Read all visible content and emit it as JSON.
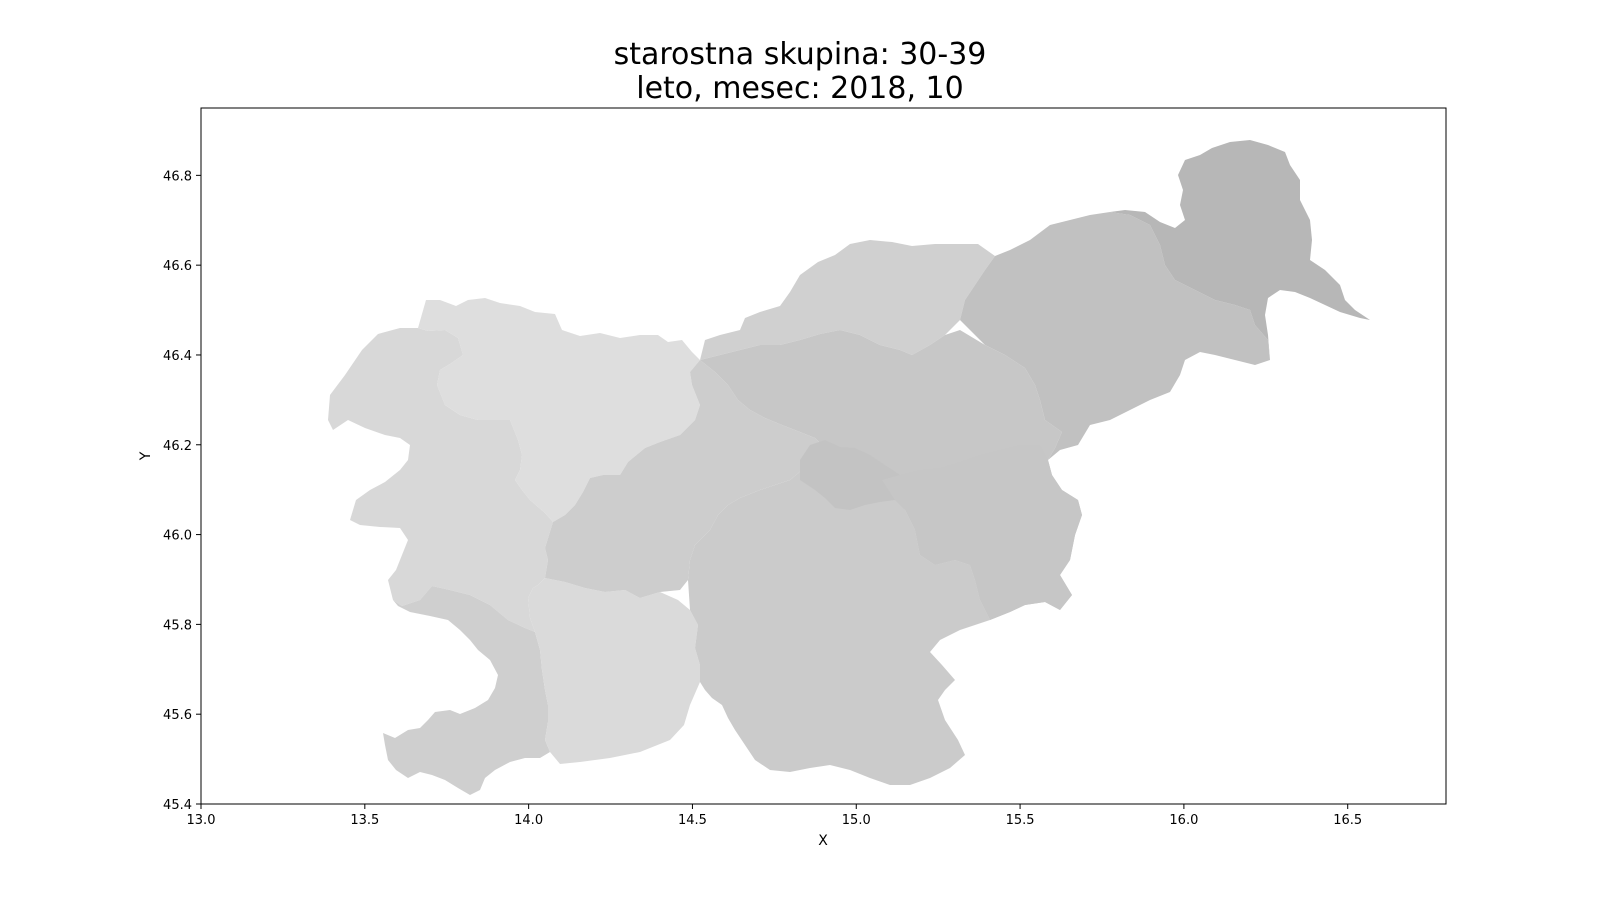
{
  "title_line1": "starostna skupina: 30-39",
  "title_line2": "leto, mesec: 2018, 10",
  "chart_data": {
    "type": "map",
    "xlabel": "X",
    "ylabel": "Y",
    "xlim": [
      13.0,
      16.8
    ],
    "ylim": [
      45.4,
      46.95
    ],
    "xticks": [
      "13.0",
      "13.5",
      "14.0",
      "14.5",
      "15.0",
      "15.5",
      "16.0",
      "16.5"
    ],
    "yticks": [
      "45.4",
      "45.6",
      "45.8",
      "46.0",
      "46.2",
      "46.4",
      "46.6",
      "46.8"
    ],
    "regions": [
      {
        "id": "goriska",
        "color": "#d8d8d8"
      },
      {
        "id": "gorenjska",
        "color": "#dedede"
      },
      {
        "id": "obalno-kraska",
        "color": "#cfcfcf"
      },
      {
        "id": "primorsko-notranjska",
        "color": "#dadada"
      },
      {
        "id": "osrednjeslovenska",
        "color": "#cdcdcd"
      },
      {
        "id": "jugovzhodna",
        "color": "#cbcbcb"
      },
      {
        "id": "koroska",
        "color": "#d0d0d0"
      },
      {
        "id": "savinjska",
        "color": "#c7c7c7"
      },
      {
        "id": "zasavska",
        "color": "#c3c3c3"
      },
      {
        "id": "posavska",
        "color": "#c6c6c6"
      },
      {
        "id": "podravska",
        "color": "#c1c1c1"
      },
      {
        "id": "pomurska",
        "color": "#b7b7b7"
      }
    ]
  }
}
